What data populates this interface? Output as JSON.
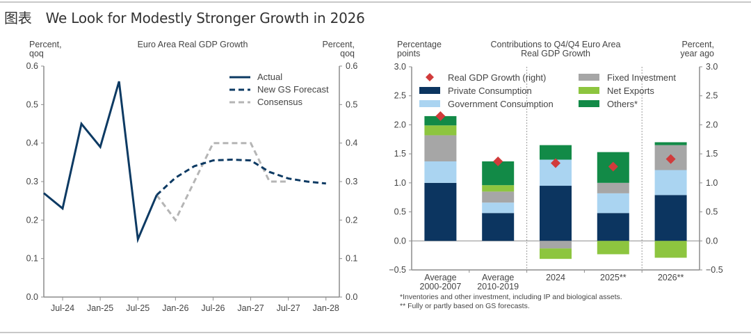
{
  "page": {
    "tag": "图表",
    "title": "We Look for Modestly Stronger Growth in 2026"
  },
  "chart_data": [
    {
      "type": "line",
      "title": "Euro Area Real GDP Growth",
      "ylabel_left": [
        "Percent,",
        "qoq"
      ],
      "ylabel_right": [
        "Percent,",
        "qoq"
      ],
      "ylim": [
        0.0,
        0.6
      ],
      "yticks": [
        "0.0",
        "0.1",
        "0.2",
        "0.3",
        "0.4",
        "0.5",
        "0.6"
      ],
      "xticks": [
        "Jul-24",
        "Jan-25",
        "Jul-25",
        "Jan-26",
        "Jul-26",
        "Jan-27",
        "Jul-27",
        "Jan-28"
      ],
      "x_unit": "quarters",
      "x_start": "Apr-24",
      "legend": [
        "Actual",
        "New GS Forecast",
        "Consensus"
      ],
      "legend_position": "top-right",
      "colors": {
        "actual": "#0d3a63",
        "forecast": "#0d3a63",
        "consensus": "#b5b5b5"
      },
      "series": [
        {
          "name": "Actual",
          "style": "solid",
          "x": [
            "Apr-24",
            "Jul-24",
            "Oct-24",
            "Jan-25",
            "Apr-25",
            "Jul-25",
            "Oct-25"
          ],
          "values": [
            0.27,
            0.23,
            0.45,
            0.39,
            0.56,
            0.15,
            0.265
          ]
        },
        {
          "name": "New GS Forecast",
          "style": "dashed",
          "x": [
            "Oct-25",
            "Jan-26",
            "Apr-26",
            "Jul-26",
            "Oct-26",
            "Jan-27",
            "Apr-27",
            "Jul-27",
            "Oct-27",
            "Jan-28"
          ],
          "values": [
            0.265,
            0.31,
            0.34,
            0.355,
            0.357,
            0.355,
            0.325,
            0.308,
            0.3,
            0.295
          ]
        },
        {
          "name": "Consensus",
          "style": "dashed",
          "x": [
            "Oct-25",
            "Jan-26",
            "Apr-26",
            "Jul-26",
            "Oct-26",
            "Jan-27",
            "Apr-27",
            "Jul-27"
          ],
          "values": [
            0.265,
            0.2,
            0.3,
            0.4,
            0.4,
            0.4,
            0.3,
            0.3
          ]
        }
      ]
    },
    {
      "type": "bar",
      "stacked": true,
      "title": [
        "Contributions to Q4/Q4 Euro Area",
        "Real GDP Growth"
      ],
      "ylabel_left": [
        "Percentage",
        "points"
      ],
      "ylabel_right": [
        "Percent,",
        "year ago"
      ],
      "ylim": [
        -0.5,
        3.0
      ],
      "yticks": [
        "-0.5",
        "0.0",
        "0.5",
        "1.0",
        "1.5",
        "2.0",
        "2.5",
        "3.0"
      ],
      "categories": [
        [
          "Average",
          "2000-2007"
        ],
        [
          "Average",
          "2010-2019"
        ],
        [
          "2024"
        ],
        [
          "2025**"
        ],
        [
          "2026**"
        ]
      ],
      "legend_position": "top",
      "series": [
        {
          "name": "Private Consumption",
          "color": "#0c3560",
          "values": [
            1.0,
            0.48,
            0.95,
            0.48,
            0.79
          ]
        },
        {
          "name": "Government Consumption",
          "color": "#aad4f1",
          "values": [
            0.37,
            0.18,
            0.45,
            0.34,
            0.43
          ]
        },
        {
          "name": "Fixed Investment",
          "color": "#a6a6a6",
          "values": [
            0.45,
            0.19,
            -0.13,
            0.18,
            0.43
          ]
        },
        {
          "name": "Net Exports",
          "color": "#8dc53f",
          "values": [
            0.17,
            0.11,
            -0.18,
            -0.23,
            -0.29
          ]
        },
        {
          "name": "Others*",
          "color": "#128a47",
          "values": [
            0.16,
            0.41,
            0.25,
            0.53,
            0.05
          ]
        }
      ],
      "markers": {
        "name": "Real GDP Growth (right)",
        "color": "#d13b3b",
        "values": [
          2.15,
          1.37,
          1.34,
          1.28,
          1.41
        ]
      },
      "legend": [
        "Real GDP Growth (right)",
        "Private Consumption",
        "Government Consumption",
        "Fixed Investment",
        "Net Exports",
        "Others*"
      ],
      "notes": [
        "*Inventories and other investment, including IP and biological assets.",
        "** Fully or partly based on GS forecasts."
      ]
    }
  ]
}
